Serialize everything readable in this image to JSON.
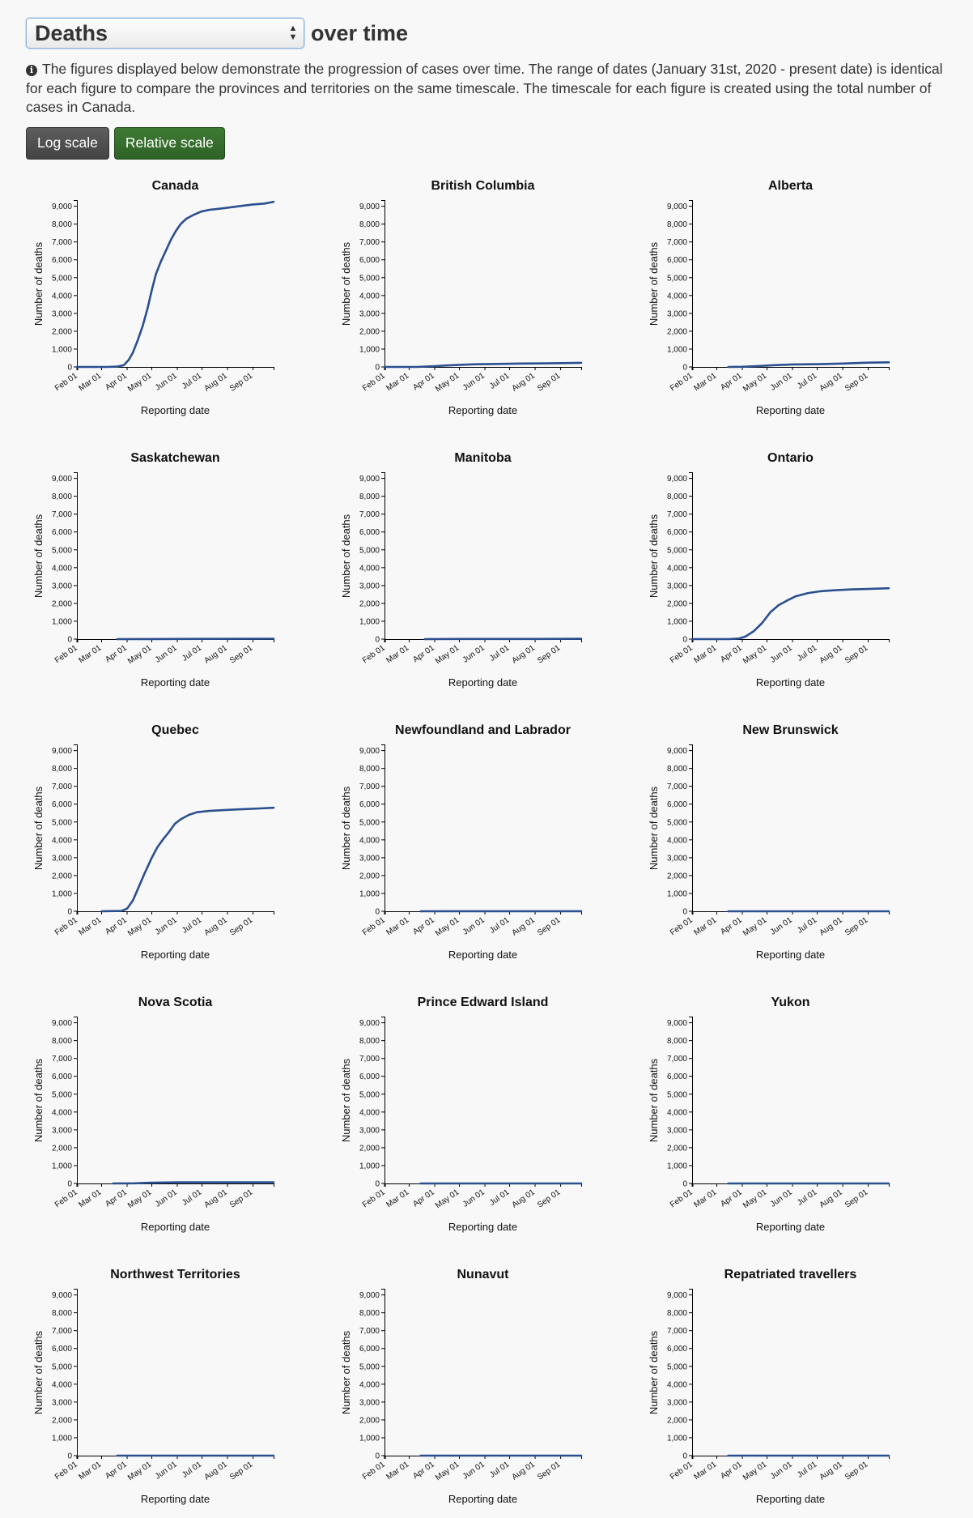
{
  "header": {
    "metric_selected": "Deaths",
    "title_suffix": "over time",
    "info_text": "The figures displayed below demonstrate the progression of cases over time. The range of dates (January 31st, 2020 - present date) is identical for each figure to compare the provinces and territories on the same timescale. The timescale for each figure is created using the total number of cases in Canada.",
    "buttons": {
      "log_scale": "Log scale",
      "relative_scale": "Relative scale"
    }
  },
  "colors": {
    "line": "#2b4f8f",
    "log_button": "#4f4f4f",
    "relative_button": "#357030",
    "background": "#f8f8f8"
  },
  "icons": {
    "info": "info-circle-icon",
    "select_arrows": "up-down-arrows-icon"
  },
  "chart_data": [
    {
      "type": "line",
      "title": "Canada",
      "xlabel": "Reporting date",
      "ylabel": "Number of deaths",
      "x_ticks": [
        "Feb 01",
        "Mar 01",
        "Apr 01",
        "May 01",
        "Jun 01",
        "Jul 01",
        "Aug 01",
        "Sep 01"
      ],
      "y_ticks": [
        "0",
        "1,000",
        "2,000",
        "3,000",
        "4,000",
        "5,000",
        "6,000",
        "7,000",
        "8,000",
        "9,000"
      ],
      "x_range": [
        "2020-01-31",
        "2020-09-26"
      ],
      "ylim": [
        0,
        9300
      ],
      "series": [
        {
          "x": [
            "2020-01-31",
            "2020-03-08",
            "2020-03-20",
            "2020-03-28",
            "2020-04-03",
            "2020-04-08",
            "2020-04-14",
            "2020-04-20",
            "2020-04-26",
            "2020-05-01",
            "2020-05-06",
            "2020-05-12",
            "2020-05-18",
            "2020-05-24",
            "2020-05-30",
            "2020-06-05",
            "2020-06-12",
            "2020-06-20",
            "2020-06-30",
            "2020-07-10",
            "2020-07-20",
            "2020-08-01",
            "2020-08-15",
            "2020-09-01",
            "2020-09-15",
            "2020-09-26"
          ],
          "y": [
            0,
            0,
            20,
            100,
            400,
            800,
            1500,
            2300,
            3300,
            4300,
            5200,
            5900,
            6500,
            7100,
            7600,
            8000,
            8300,
            8500,
            8700,
            8800,
            8850,
            8920,
            9000,
            9100,
            9150,
            9250
          ]
        }
      ]
    },
    {
      "type": "line",
      "title": "British Columbia",
      "xlabel": "Reporting date",
      "ylabel": "Number of deaths",
      "x_ticks": [
        "Feb 01",
        "Mar 01",
        "Apr 01",
        "May 01",
        "Jun 01",
        "Jul 01",
        "Aug 01",
        "Sep 01"
      ],
      "y_ticks": [
        "0",
        "1,000",
        "2,000",
        "3,000",
        "4,000",
        "5,000",
        "6,000",
        "7,000",
        "8,000",
        "9,000"
      ],
      "x_range": [
        "2020-01-31",
        "2020-09-26"
      ],
      "ylim": [
        0,
        9300
      ],
      "series": [
        {
          "x": [
            "2020-01-31",
            "2020-03-10",
            "2020-04-01",
            "2020-04-15",
            "2020-05-01",
            "2020-05-20",
            "2020-06-15",
            "2020-07-15",
            "2020-08-15",
            "2020-09-26"
          ],
          "y": [
            0,
            0,
            40,
            80,
            120,
            150,
            170,
            190,
            200,
            230
          ]
        }
      ]
    },
    {
      "type": "line",
      "title": "Alberta",
      "xlabel": "Reporting date",
      "ylabel": "Number of deaths",
      "x_ticks": [
        "Feb 01",
        "Mar 01",
        "Apr 01",
        "May 01",
        "Jun 01",
        "Jul 01",
        "Aug 01",
        "Sep 01"
      ],
      "y_ticks": [
        "0",
        "1,000",
        "2,000",
        "3,000",
        "4,000",
        "5,000",
        "6,000",
        "7,000",
        "8,000",
        "9,000"
      ],
      "x_range": [
        "2020-01-31",
        "2020-09-26"
      ],
      "ylim": [
        0,
        9300
      ],
      "series": [
        {
          "x": [
            "2020-03-15",
            "2020-04-01",
            "2020-04-20",
            "2020-05-10",
            "2020-06-01",
            "2020-07-01",
            "2020-08-01",
            "2020-09-01",
            "2020-09-26"
          ],
          "y": [
            0,
            10,
            50,
            100,
            140,
            155,
            190,
            240,
            260
          ]
        }
      ]
    },
    {
      "type": "line",
      "title": "Saskatchewan",
      "xlabel": "Reporting date",
      "ylabel": "Number of deaths",
      "x_ticks": [
        "Feb 01",
        "Mar 01",
        "Apr 01",
        "May 01",
        "Jun 01",
        "Jul 01",
        "Aug 01",
        "Sep 01"
      ],
      "y_ticks": [
        "0",
        "1,000",
        "2,000",
        "3,000",
        "4,000",
        "5,000",
        "6,000",
        "7,000",
        "8,000",
        "9,000"
      ],
      "x_range": [
        "2020-01-31",
        "2020-09-26"
      ],
      "ylim": [
        0,
        9300
      ],
      "series": [
        {
          "x": [
            "2020-03-20",
            "2020-05-01",
            "2020-07-01",
            "2020-09-26"
          ],
          "y": [
            0,
            5,
            15,
            24
          ]
        }
      ]
    },
    {
      "type": "line",
      "title": "Manitoba",
      "xlabel": "Reporting date",
      "ylabel": "Number of deaths",
      "x_ticks": [
        "Feb 01",
        "Mar 01",
        "Apr 01",
        "May 01",
        "Jun 01",
        "Jul 01",
        "Aug 01",
        "Sep 01"
      ],
      "y_ticks": [
        "0",
        "1,000",
        "2,000",
        "3,000",
        "4,000",
        "5,000",
        "6,000",
        "7,000",
        "8,000",
        "9,000"
      ],
      "x_range": [
        "2020-01-31",
        "2020-09-26"
      ],
      "ylim": [
        0,
        9300
      ],
      "series": [
        {
          "x": [
            "2020-03-20",
            "2020-05-01",
            "2020-08-01",
            "2020-09-26"
          ],
          "y": [
            0,
            7,
            10,
            16
          ]
        }
      ]
    },
    {
      "type": "line",
      "title": "Ontario",
      "xlabel": "Reporting date",
      "ylabel": "Number of deaths",
      "x_ticks": [
        "Feb 01",
        "Mar 01",
        "Apr 01",
        "May 01",
        "Jun 01",
        "Jul 01",
        "Aug 01",
        "Sep 01"
      ],
      "y_ticks": [
        "0",
        "1,000",
        "2,000",
        "3,000",
        "4,000",
        "5,000",
        "6,000",
        "7,000",
        "8,000",
        "9,000"
      ],
      "x_range": [
        "2020-01-31",
        "2020-09-26"
      ],
      "ylim": [
        0,
        9300
      ],
      "series": [
        {
          "x": [
            "2020-01-31",
            "2020-03-15",
            "2020-03-28",
            "2020-04-05",
            "2020-04-15",
            "2020-04-25",
            "2020-05-05",
            "2020-05-15",
            "2020-05-25",
            "2020-06-05",
            "2020-06-20",
            "2020-07-05",
            "2020-07-20",
            "2020-08-10",
            "2020-09-01",
            "2020-09-26"
          ],
          "y": [
            0,
            0,
            30,
            150,
            450,
            900,
            1500,
            1900,
            2150,
            2400,
            2580,
            2680,
            2730,
            2780,
            2810,
            2850
          ]
        }
      ]
    },
    {
      "type": "line",
      "title": "Quebec",
      "xlabel": "Reporting date",
      "ylabel": "Number of deaths",
      "x_ticks": [
        "Feb 01",
        "Mar 01",
        "Apr 01",
        "May 01",
        "Jun 01",
        "Jul 01",
        "Aug 01",
        "Sep 01"
      ],
      "y_ticks": [
        "0",
        "1,000",
        "2,000",
        "3,000",
        "4,000",
        "5,000",
        "6,000",
        "7,000",
        "8,000",
        "9,000"
      ],
      "x_range": [
        "2020-01-31",
        "2020-09-26"
      ],
      "ylim": [
        0,
        9300
      ],
      "series": [
        {
          "x": [
            "2020-03-01",
            "2020-03-25",
            "2020-04-01",
            "2020-04-08",
            "2020-04-15",
            "2020-04-22",
            "2020-05-01",
            "2020-05-08",
            "2020-05-15",
            "2020-05-22",
            "2020-05-29",
            "2020-06-05",
            "2020-06-15",
            "2020-06-25",
            "2020-07-10",
            "2020-08-01",
            "2020-08-20",
            "2020-09-10",
            "2020-09-26"
          ],
          "y": [
            0,
            20,
            150,
            600,
            1350,
            2100,
            3000,
            3600,
            4050,
            4450,
            4900,
            5150,
            5400,
            5550,
            5620,
            5680,
            5720,
            5760,
            5800
          ]
        }
      ]
    },
    {
      "type": "line",
      "title": "Newfoundland and Labrador",
      "xlabel": "Reporting date",
      "ylabel": "Number of deaths",
      "x_ticks": [
        "Feb 01",
        "Mar 01",
        "Apr 01",
        "May 01",
        "Jun 01",
        "Jul 01",
        "Aug 01",
        "Sep 01"
      ],
      "y_ticks": [
        "0",
        "1,000",
        "2,000",
        "3,000",
        "4,000",
        "5,000",
        "6,000",
        "7,000",
        "8,000",
        "9,000"
      ],
      "x_range": [
        "2020-01-31",
        "2020-09-26"
      ],
      "ylim": [
        0,
        9300
      ],
      "series": [
        {
          "x": [
            "2020-03-15",
            "2020-04-15",
            "2020-09-26"
          ],
          "y": [
            0,
            3,
            3
          ]
        }
      ]
    },
    {
      "type": "line",
      "title": "New Brunswick",
      "xlabel": "Reporting date",
      "ylabel": "Number of deaths",
      "x_ticks": [
        "Feb 01",
        "Mar 01",
        "Apr 01",
        "May 01",
        "Jun 01",
        "Jul 01",
        "Aug 01",
        "Sep 01"
      ],
      "y_ticks": [
        "0",
        "1,000",
        "2,000",
        "3,000",
        "4,000",
        "5,000",
        "6,000",
        "7,000",
        "8,000",
        "9,000"
      ],
      "x_range": [
        "2020-01-31",
        "2020-09-26"
      ],
      "ylim": [
        0,
        9300
      ],
      "series": [
        {
          "x": [
            "2020-03-15",
            "2020-06-01",
            "2020-09-26"
          ],
          "y": [
            0,
            1,
            2
          ]
        }
      ]
    },
    {
      "type": "line",
      "title": "Nova Scotia",
      "xlabel": "Reporting date",
      "ylabel": "Number of deaths",
      "x_ticks": [
        "Feb 01",
        "Mar 01",
        "Apr 01",
        "May 01",
        "Jun 01",
        "Jul 01",
        "Aug 01",
        "Sep 01"
      ],
      "y_ticks": [
        "0",
        "1,000",
        "2,000",
        "3,000",
        "4,000",
        "5,000",
        "6,000",
        "7,000",
        "8,000",
        "9,000"
      ],
      "x_range": [
        "2020-01-31",
        "2020-09-26"
      ],
      "ylim": [
        0,
        9300
      ],
      "series": [
        {
          "x": [
            "2020-03-15",
            "2020-04-10",
            "2020-05-01",
            "2020-06-01",
            "2020-09-26"
          ],
          "y": [
            0,
            10,
            40,
            63,
            65
          ]
        }
      ]
    },
    {
      "type": "line",
      "title": "Prince Edward Island",
      "xlabel": "Reporting date",
      "ylabel": "Number of deaths",
      "x_ticks": [
        "Feb 01",
        "Mar 01",
        "Apr 01",
        "May 01",
        "Jun 01",
        "Jul 01",
        "Aug 01",
        "Sep 01"
      ],
      "y_ticks": [
        "0",
        "1,000",
        "2,000",
        "3,000",
        "4,000",
        "5,000",
        "6,000",
        "7,000",
        "8,000",
        "9,000"
      ],
      "x_range": [
        "2020-01-31",
        "2020-09-26"
      ],
      "ylim": [
        0,
        9300
      ],
      "series": [
        {
          "x": [
            "2020-03-15",
            "2020-09-26"
          ],
          "y": [
            0,
            0
          ]
        }
      ]
    },
    {
      "type": "line",
      "title": "Yukon",
      "xlabel": "Reporting date",
      "ylabel": "Number of deaths",
      "x_ticks": [
        "Feb 01",
        "Mar 01",
        "Apr 01",
        "May 01",
        "Jun 01",
        "Jul 01",
        "Aug 01",
        "Sep 01"
      ],
      "y_ticks": [
        "0",
        "1,000",
        "2,000",
        "3,000",
        "4,000",
        "5,000",
        "6,000",
        "7,000",
        "8,000",
        "9,000"
      ],
      "x_range": [
        "2020-01-31",
        "2020-09-26"
      ],
      "ylim": [
        0,
        9300
      ],
      "series": [
        {
          "x": [
            "2020-03-15",
            "2020-09-26"
          ],
          "y": [
            0,
            0
          ]
        }
      ]
    },
    {
      "type": "line",
      "title": "Northwest Territories",
      "xlabel": "Reporting date",
      "ylabel": "Number of deaths",
      "x_ticks": [
        "Feb 01",
        "Mar 01",
        "Apr 01",
        "May 01",
        "Jun 01",
        "Jul 01",
        "Aug 01",
        "Sep 01"
      ],
      "y_ticks": [
        "0",
        "1,000",
        "2,000",
        "3,000",
        "4,000",
        "5,000",
        "6,000",
        "7,000",
        "8,000",
        "9,000"
      ],
      "x_range": [
        "2020-01-31",
        "2020-09-26"
      ],
      "ylim": [
        0,
        9300
      ],
      "series": [
        {
          "x": [
            "2020-03-20",
            "2020-09-26"
          ],
          "y": [
            0,
            0
          ]
        }
      ]
    },
    {
      "type": "line",
      "title": "Nunavut",
      "xlabel": "Reporting date",
      "ylabel": "Number of deaths",
      "x_ticks": [
        "Feb 01",
        "Mar 01",
        "Apr 01",
        "May 01",
        "Jun 01",
        "Jul 01",
        "Aug 01",
        "Sep 01"
      ],
      "y_ticks": [
        "0",
        "1,000",
        "2,000",
        "3,000",
        "4,000",
        "5,000",
        "6,000",
        "7,000",
        "8,000",
        "9,000"
      ],
      "x_range": [
        "2020-01-31",
        "2020-09-26"
      ],
      "ylim": [
        0,
        9300
      ],
      "series": [
        {
          "x": [
            "2020-03-15",
            "2020-09-26"
          ],
          "y": [
            0,
            0
          ]
        }
      ]
    },
    {
      "type": "line",
      "title": "Repatriated travellers",
      "xlabel": "Reporting date",
      "ylabel": "Number of deaths",
      "x_ticks": [
        "Feb 01",
        "Mar 01",
        "Apr 01",
        "May 01",
        "Jun 01",
        "Jul 01",
        "Aug 01",
        "Sep 01"
      ],
      "y_ticks": [
        "0",
        "1,000",
        "2,000",
        "3,000",
        "4,000",
        "5,000",
        "6,000",
        "7,000",
        "8,000",
        "9,000"
      ],
      "x_range": [
        "2020-01-31",
        "2020-09-26"
      ],
      "ylim": [
        0,
        9300
      ],
      "series": [
        {
          "x": [
            "2020-03-15",
            "2020-09-26"
          ],
          "y": [
            0,
            0
          ]
        }
      ]
    }
  ]
}
